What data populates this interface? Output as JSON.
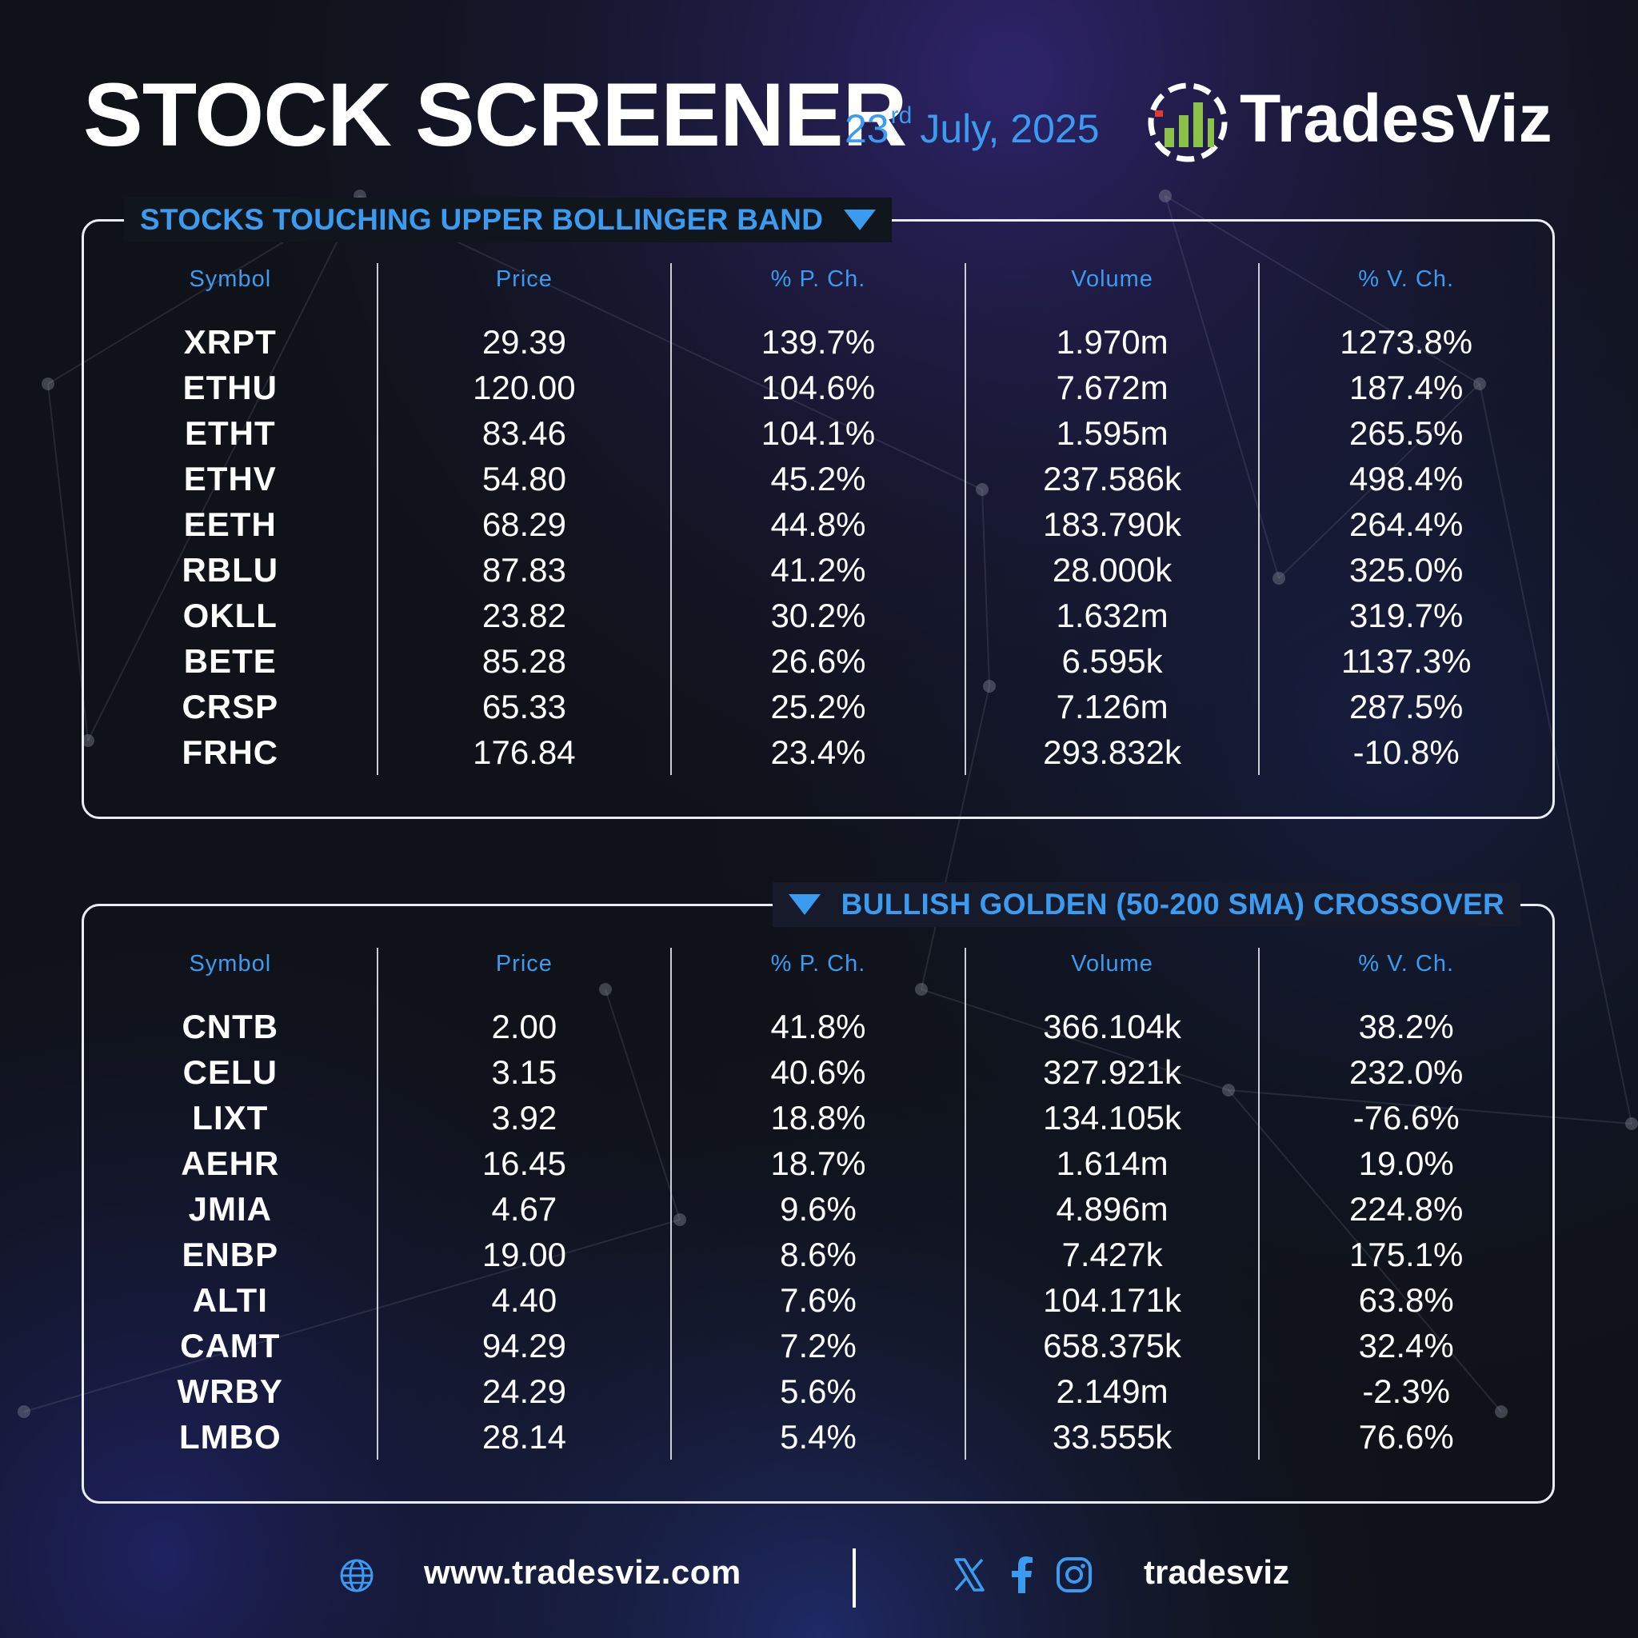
{
  "header": {
    "title": "STOCK SCREENER",
    "date_day": "23",
    "date_suffix": "rd",
    "date_rest": "July, 2025",
    "brand": "TradesViz"
  },
  "columns": [
    "Symbol",
    "Price",
    "% P. Ch.",
    "Volume",
    "% V. Ch."
  ],
  "tables": [
    {
      "title": "STOCKS TOUCHING UPPER BOLLINGER BAND",
      "rows": [
        {
          "symbol": "XRPT",
          "price": "29.39",
          "pch": "139.7%",
          "volume": "1.970m",
          "vch": "1273.8%"
        },
        {
          "symbol": "ETHU",
          "price": "120.00",
          "pch": "104.6%",
          "volume": "7.672m",
          "vch": "187.4%"
        },
        {
          "symbol": "ETHT",
          "price": "83.46",
          "pch": "104.1%",
          "volume": "1.595m",
          "vch": "265.5%"
        },
        {
          "symbol": "ETHV",
          "price": "54.80",
          "pch": "45.2%",
          "volume": "237.586k",
          "vch": "498.4%"
        },
        {
          "symbol": "EETH",
          "price": "68.29",
          "pch": "44.8%",
          "volume": "183.790k",
          "vch": "264.4%"
        },
        {
          "symbol": "RBLU",
          "price": "87.83",
          "pch": "41.2%",
          "volume": "28.000k",
          "vch": "325.0%"
        },
        {
          "symbol": "OKLL",
          "price": "23.82",
          "pch": "30.2%",
          "volume": "1.632m",
          "vch": "319.7%"
        },
        {
          "symbol": "BETE",
          "price": "85.28",
          "pch": "26.6%",
          "volume": "6.595k",
          "vch": "1137.3%"
        },
        {
          "symbol": "CRSP",
          "price": "65.33",
          "pch": "25.2%",
          "volume": "7.126m",
          "vch": "287.5%"
        },
        {
          "symbol": "FRHC",
          "price": "176.84",
          "pch": "23.4%",
          "volume": "293.832k",
          "vch": "-10.8%"
        }
      ]
    },
    {
      "title": "BULLISH GOLDEN (50-200 SMA) CROSSOVER",
      "rows": [
        {
          "symbol": "CNTB",
          "price": "2.00",
          "pch": "41.8%",
          "volume": "366.104k",
          "vch": "38.2%"
        },
        {
          "symbol": "CELU",
          "price": "3.15",
          "pch": "40.6%",
          "volume": "327.921k",
          "vch": "232.0%"
        },
        {
          "symbol": "LIXT",
          "price": "3.92",
          "pch": "18.8%",
          "volume": "134.105k",
          "vch": "-76.6%"
        },
        {
          "symbol": "AEHR",
          "price": "16.45",
          "pch": "18.7%",
          "volume": "1.614m",
          "vch": "19.0%"
        },
        {
          "symbol": "JMIA",
          "price": "4.67",
          "pch": "9.6%",
          "volume": "4.896m",
          "vch": "224.8%"
        },
        {
          "symbol": "ENBP",
          "price": "19.00",
          "pch": "8.6%",
          "volume": "7.427k",
          "vch": "175.1%"
        },
        {
          "symbol": "ALTI",
          "price": "4.40",
          "pch": "7.6%",
          "volume": "104.171k",
          "vch": "63.8%"
        },
        {
          "symbol": "CAMT",
          "price": "94.29",
          "pch": "7.2%",
          "volume": "658.375k",
          "vch": "32.4%"
        },
        {
          "symbol": "WRBY",
          "price": "24.29",
          "pch": "5.6%",
          "volume": "2.149m",
          "vch": "-2.3%"
        },
        {
          "symbol": "LMBO",
          "price": "28.14",
          "pch": "5.4%",
          "volume": "33.555k",
          "vch": "76.6%"
        }
      ]
    }
  ],
  "footer": {
    "url": "www.tradesviz.com",
    "handle": "tradesviz",
    "icons": [
      "globe-icon",
      "x-icon",
      "facebook-icon",
      "instagram-icon"
    ]
  },
  "colors": {
    "accent": "#3a9bf0",
    "background": "#0f1218",
    "border": "#e9edf3"
  }
}
